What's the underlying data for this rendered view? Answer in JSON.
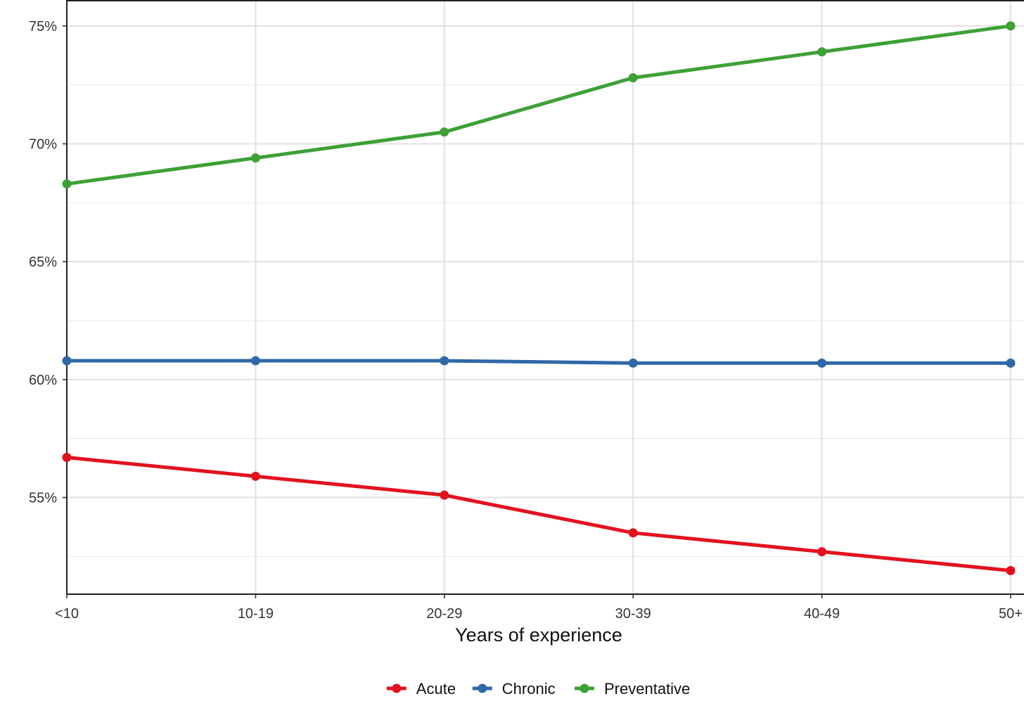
{
  "chart_data": {
    "type": "line",
    "title": "",
    "xlabel": "Years of experience",
    "ylabel": "",
    "categories": [
      "<10",
      "10-19",
      "20-29",
      "30-39",
      "40-49",
      "50+"
    ],
    "y_ticks": [
      0.55,
      0.6,
      0.65,
      0.7,
      0.75
    ],
    "y_tick_labels": [
      "55%",
      "60%",
      "65%",
      "70%",
      "75%"
    ],
    "ylim": [
      0.509,
      0.761
    ],
    "grid": true,
    "legend_position": "bottom",
    "series": [
      {
        "name": "Acute",
        "color": "#e3111e",
        "values": [
          0.567,
          0.559,
          0.551,
          0.535,
          0.527,
          0.519
        ]
      },
      {
        "name": "Chronic",
        "color": "#2f68a9",
        "values": [
          0.608,
          0.608,
          0.608,
          0.607,
          0.607,
          0.607
        ]
      },
      {
        "name": "Preventative",
        "color": "#3da136",
        "values": [
          0.683,
          0.694,
          0.705,
          0.728,
          0.739,
          0.75
        ]
      }
    ]
  }
}
